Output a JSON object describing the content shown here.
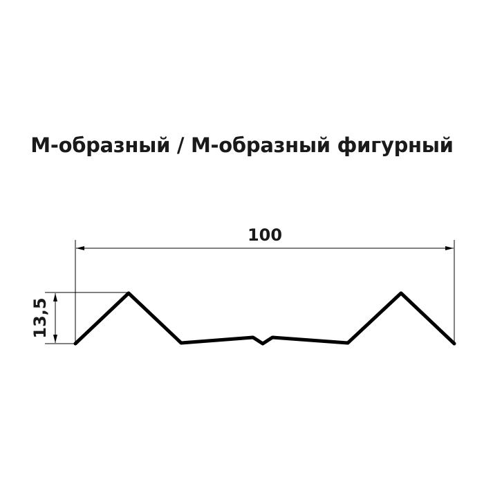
{
  "title": "М-образный / М-образный фигурный",
  "dimensions": {
    "width_label": "100",
    "height_label": "13,5"
  },
  "colors": {
    "line": "#000000",
    "text": "#1a1a1a"
  }
}
